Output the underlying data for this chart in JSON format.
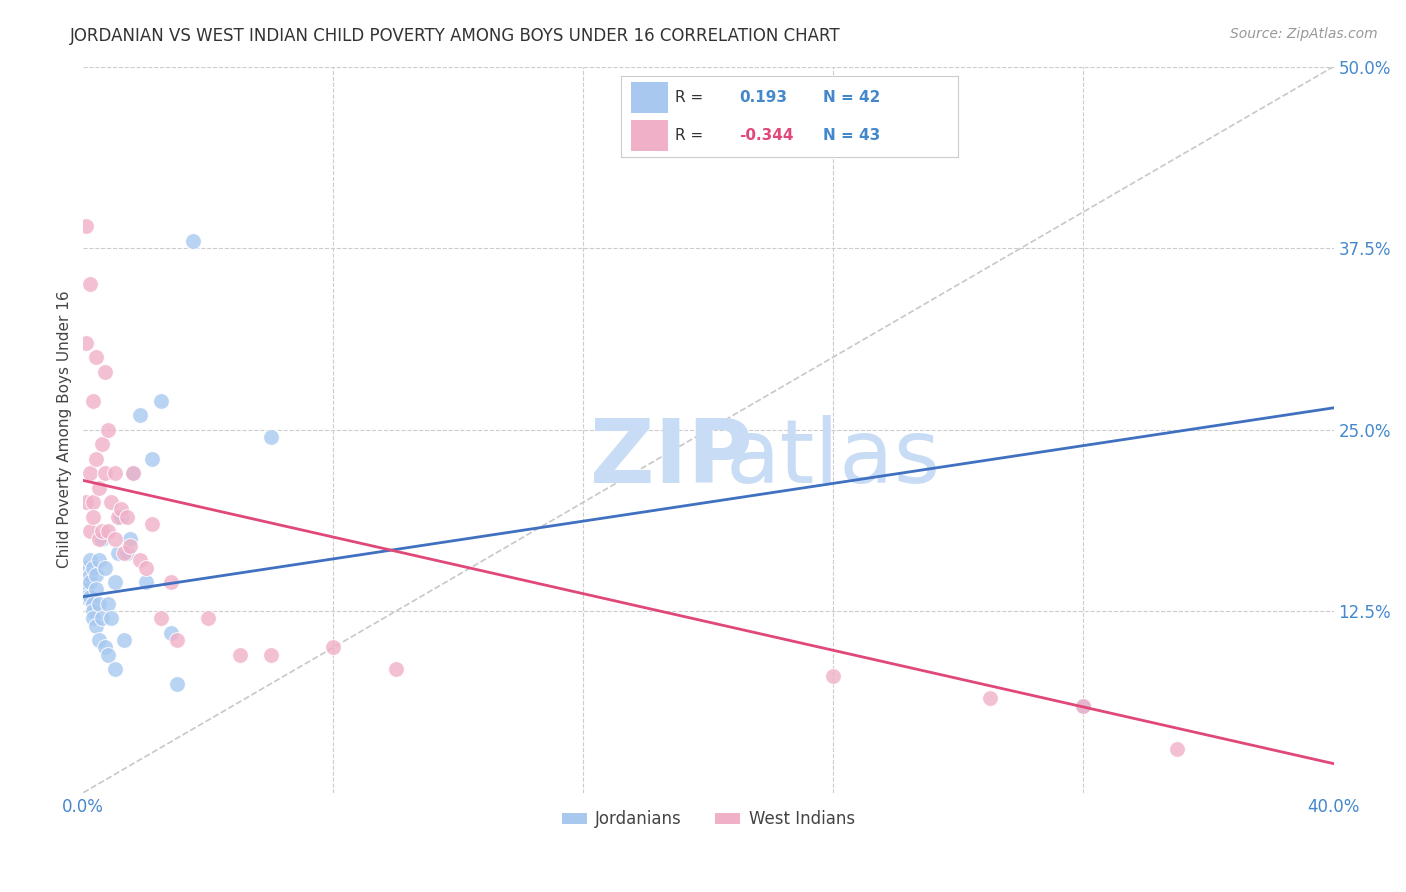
{
  "title": "JORDANIAN VS WEST INDIAN CHILD POVERTY AMONG BOYS UNDER 16 CORRELATION CHART",
  "source": "Source: ZipAtlas.com",
  "ylabel": "Child Poverty Among Boys Under 16",
  "xlim": [
    0.0,
    0.4
  ],
  "ylim": [
    0.0,
    0.5
  ],
  "background_color": "#ffffff",
  "grid_color": "#cccccc",
  "jordanians_color": "#a8c8f0",
  "west_indians_color": "#f0b0c8",
  "blue_line_color": "#4070c0",
  "pink_line_color": "#e04878",
  "ref_line_color": "#c8c8c8",
  "watermark_color": "#ddeeff",
  "legend_R_blue": "0.193",
  "legend_N_blue": "42",
  "legend_R_pink": "-0.344",
  "legend_N_pink": "43",
  "blue_line_x0": 0.0,
  "blue_line_y0": 0.135,
  "blue_line_x1": 0.4,
  "blue_line_y1": 0.265,
  "pink_line_x0": 0.0,
  "pink_line_y0": 0.215,
  "pink_line_x1": 0.4,
  "pink_line_y1": 0.02,
  "jordanians_x": [
    0.001,
    0.001,
    0.001,
    0.001,
    0.002,
    0.002,
    0.002,
    0.002,
    0.003,
    0.003,
    0.003,
    0.003,
    0.004,
    0.004,
    0.004,
    0.005,
    0.005,
    0.005,
    0.006,
    0.006,
    0.007,
    0.007,
    0.008,
    0.008,
    0.009,
    0.01,
    0.01,
    0.011,
    0.012,
    0.013,
    0.014,
    0.015,
    0.016,
    0.018,
    0.02,
    0.022,
    0.025,
    0.028,
    0.03,
    0.035,
    0.06,
    0.32
  ],
  "jordanians_y": [
    0.155,
    0.145,
    0.14,
    0.135,
    0.16,
    0.15,
    0.145,
    0.135,
    0.155,
    0.13,
    0.125,
    0.12,
    0.15,
    0.14,
    0.115,
    0.16,
    0.13,
    0.105,
    0.175,
    0.12,
    0.155,
    0.1,
    0.13,
    0.095,
    0.12,
    0.145,
    0.085,
    0.165,
    0.19,
    0.105,
    0.165,
    0.175,
    0.22,
    0.26,
    0.145,
    0.23,
    0.27,
    0.11,
    0.075,
    0.38,
    0.245,
    0.06
  ],
  "west_indians_x": [
    0.001,
    0.001,
    0.001,
    0.002,
    0.002,
    0.002,
    0.003,
    0.003,
    0.003,
    0.004,
    0.004,
    0.005,
    0.005,
    0.006,
    0.006,
    0.007,
    0.007,
    0.008,
    0.008,
    0.009,
    0.01,
    0.01,
    0.011,
    0.012,
    0.013,
    0.014,
    0.015,
    0.016,
    0.018,
    0.02,
    0.022,
    0.025,
    0.028,
    0.03,
    0.04,
    0.05,
    0.06,
    0.08,
    0.1,
    0.24,
    0.29,
    0.32,
    0.35
  ],
  "west_indians_y": [
    0.2,
    0.39,
    0.31,
    0.22,
    0.18,
    0.35,
    0.2,
    0.27,
    0.19,
    0.23,
    0.3,
    0.21,
    0.175,
    0.18,
    0.24,
    0.22,
    0.29,
    0.25,
    0.18,
    0.2,
    0.175,
    0.22,
    0.19,
    0.195,
    0.165,
    0.19,
    0.17,
    0.22,
    0.16,
    0.155,
    0.185,
    0.12,
    0.145,
    0.105,
    0.12,
    0.095,
    0.095,
    0.1,
    0.085,
    0.08,
    0.065,
    0.06,
    0.03
  ]
}
